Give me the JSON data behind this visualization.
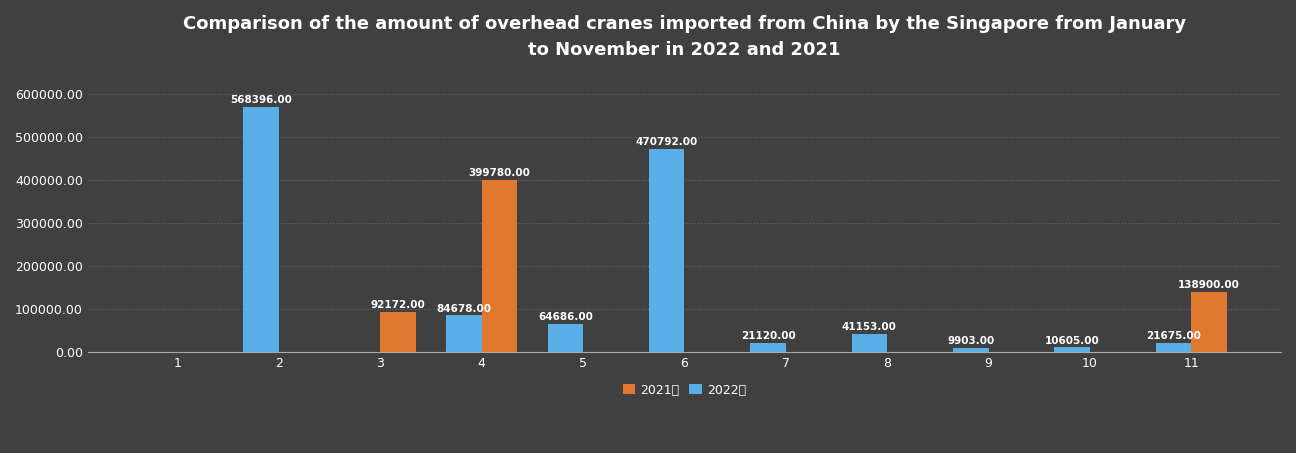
{
  "title": "Comparison of the amount of overhead cranes imported from China by the Singapore from January\nto November in 2022 and 2021",
  "months": [
    1,
    2,
    3,
    4,
    5,
    6,
    7,
    8,
    9,
    10,
    11
  ],
  "values_2022": [
    0,
    568396.0,
    0,
    84678.0,
    64686.0,
    470792.0,
    21120.0,
    41153.0,
    9903.0,
    10605.0,
    21675.0
  ],
  "values_2021": [
    0,
    0,
    92172.0,
    399780.0,
    0,
    0,
    0,
    0,
    0,
    0,
    138900.0
  ],
  "color_2022": "#5aafe8",
  "color_2021": "#e07830",
  "background_color": "#404040",
  "text_color": "#ffffff",
  "grid_color": "#666666",
  "ylim": [
    0,
    650000
  ],
  "yticks": [
    0,
    100000,
    200000,
    300000,
    400000,
    500000,
    600000
  ],
  "legend_2022_label": "2022年",
  "legend_2021_label": "2021年",
  "bar_width": 0.35,
  "title_fontsize": 13,
  "tick_fontsize": 9,
  "label_fontsize": 7.5
}
